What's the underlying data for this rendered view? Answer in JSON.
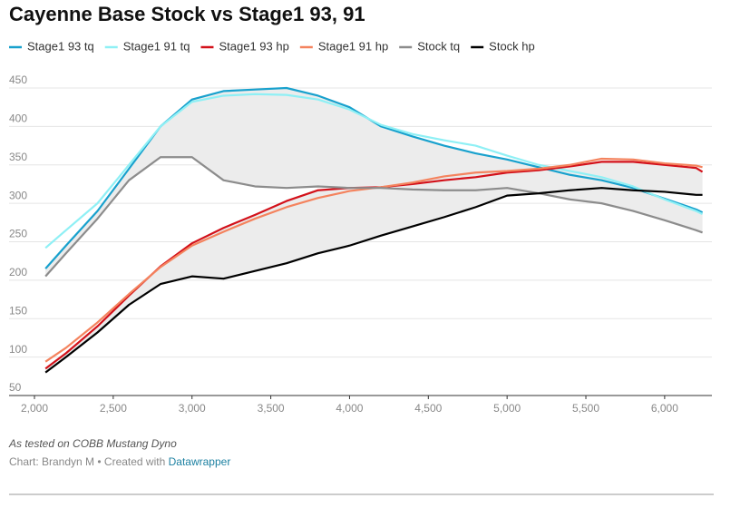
{
  "chart_data": {
    "type": "line",
    "title": "Cayenne Base Stock vs Stage1 93, 91",
    "note": "As tested on COBB Mustang Dyno",
    "source": "Chart: Brandyn M • Created with",
    "credit_link": "Datawrapper",
    "x": [
      2070,
      2200,
      2400,
      2600,
      2800,
      3000,
      3200,
      3400,
      3600,
      3800,
      4000,
      4200,
      4400,
      4600,
      4800,
      5000,
      5200,
      5400,
      5600,
      5800,
      6000,
      6200,
      6240
    ],
    "series": [
      {
        "name": "Stage1 93 tq",
        "color": "#18a1cd",
        "values": [
          215,
          245,
          290,
          345,
          400,
          435,
          446,
          448,
          450,
          440,
          425,
          400,
          387,
          375,
          365,
          357,
          347,
          337,
          330,
          320,
          306,
          292,
          288
        ]
      },
      {
        "name": "Stage1 91 tq",
        "color": "#8ff0f5",
        "values": [
          242,
          265,
          300,
          350,
          400,
          432,
          440,
          442,
          441,
          435,
          422,
          402,
          390,
          382,
          375,
          362,
          350,
          342,
          334,
          322,
          305,
          290,
          286
        ]
      },
      {
        "name": "Stage1 93 hp",
        "color": "#d3111a",
        "values": [
          85,
          105,
          140,
          180,
          218,
          248,
          268,
          285,
          303,
          317,
          320,
          321,
          325,
          330,
          334,
          340,
          343,
          348,
          354,
          354,
          350,
          346,
          341
        ]
      },
      {
        "name": "Stage1 91 hp",
        "color": "#f4835e",
        "values": [
          94,
          112,
          145,
          182,
          217,
          245,
          263,
          280,
          295,
          307,
          316,
          321,
          327,
          335,
          340,
          342,
          345,
          350,
          358,
          357,
          352,
          349,
          347
        ]
      },
      {
        "name": "Stock tq",
        "color": "#8c8c8c",
        "values": [
          205,
          235,
          280,
          330,
          360,
          360,
          330,
          322,
          320,
          322,
          320,
          320,
          318,
          317,
          317,
          320,
          313,
          305,
          300,
          290,
          278,
          265,
          262
        ]
      },
      {
        "name": "Stock hp",
        "color": "#000000",
        "values": [
          80,
          100,
          132,
          168,
          195,
          205,
          202,
          212,
          222,
          235,
          245,
          258,
          270,
          282,
          295,
          310,
          313,
          317,
          320,
          317,
          315,
          311,
          311
        ]
      }
    ],
    "range_color": "#ececec",
    "xlim": [
      2000,
      6300
    ],
    "xticks": [
      {
        "value": 2000,
        "label": "2,000"
      },
      {
        "value": 2500,
        "label": "2,500"
      },
      {
        "value": 3000,
        "label": "3,000"
      },
      {
        "value": 3500,
        "label": "3,500"
      },
      {
        "value": 4000,
        "label": "4,000"
      },
      {
        "value": 4500,
        "label": "4,500"
      },
      {
        "value": 5000,
        "label": "5,000"
      },
      {
        "value": 5500,
        "label": "5,500"
      },
      {
        "value": 6000,
        "label": "6,000"
      }
    ],
    "ylim": [
      50,
      450
    ],
    "yticks": [
      50,
      100,
      150,
      200,
      250,
      300,
      350,
      400,
      450
    ],
    "grid": true
  }
}
